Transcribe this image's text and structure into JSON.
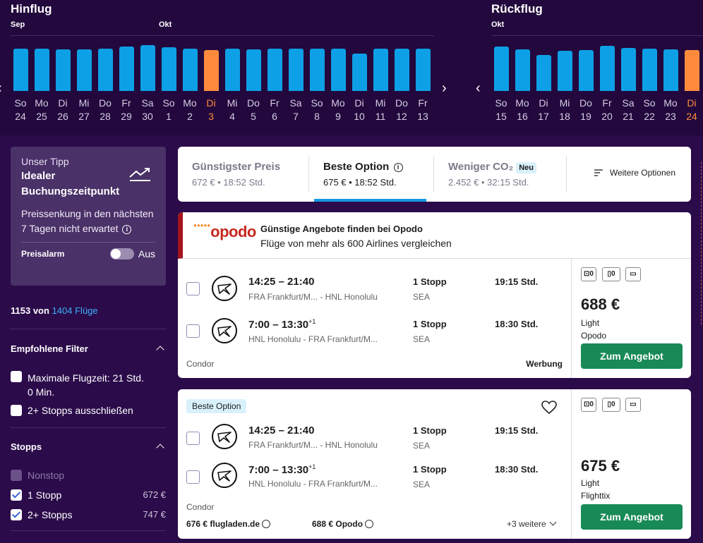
{
  "outbound": {
    "title": "Hinflug",
    "months": [
      "Sep",
      "Okt"
    ],
    "days": [
      {
        "name": "So",
        "num": "24",
        "level": 0.84
      },
      {
        "name": "Mo",
        "num": "25",
        "level": 0.83
      },
      {
        "name": "Di",
        "num": "26",
        "level": 0.82
      },
      {
        "name": "Mi",
        "num": "27",
        "level": 0.82
      },
      {
        "name": "Do",
        "num": "28",
        "level": 0.84
      },
      {
        "name": "Fr",
        "num": "29",
        "level": 0.88
      },
      {
        "name": "Sa",
        "num": "30",
        "level": 0.9
      },
      {
        "name": "So",
        "num": "1",
        "level": 0.86
      },
      {
        "name": "Mo",
        "num": "2",
        "level": 0.83
      },
      {
        "name": "Di",
        "num": "3",
        "level": 0.8,
        "selected": true
      },
      {
        "name": "Mi",
        "num": "4",
        "level": 0.83
      },
      {
        "name": "Do",
        "num": "5",
        "level": 0.82
      },
      {
        "name": "Fr",
        "num": "6",
        "level": 0.84
      },
      {
        "name": "Sa",
        "num": "7",
        "level": 0.83
      },
      {
        "name": "So",
        "num": "8",
        "level": 0.83
      },
      {
        "name": "Mo",
        "num": "9",
        "level": 0.84
      },
      {
        "name": "Di",
        "num": "10",
        "level": 0.74
      },
      {
        "name": "Mi",
        "num": "11",
        "level": 0.83
      },
      {
        "name": "Do",
        "num": "12",
        "level": 0.83
      },
      {
        "name": "Fr",
        "num": "13",
        "level": 0.84
      }
    ]
  },
  "return": {
    "title": "Rückflug",
    "months": [
      "Okt"
    ],
    "days": [
      {
        "name": "So",
        "num": "15",
        "level": 0.87
      },
      {
        "name": "Mo",
        "num": "16",
        "level": 0.82
      },
      {
        "name": "Di",
        "num": "17",
        "level": 0.71
      },
      {
        "name": "Mi",
        "num": "18",
        "level": 0.79
      },
      {
        "name": "Do",
        "num": "19",
        "level": 0.81
      },
      {
        "name": "Fr",
        "num": "20",
        "level": 0.89
      },
      {
        "name": "Sa",
        "num": "21",
        "level": 0.85
      },
      {
        "name": "So",
        "num": "22",
        "level": 0.83
      },
      {
        "name": "Mo",
        "num": "23",
        "level": 0.82
      },
      {
        "name": "Di",
        "num": "24",
        "level": 0.81,
        "selected": true
      }
    ]
  },
  "tip": {
    "label": "Unser Tipp",
    "title": "Idealer Buchungszeitpunkt",
    "text": "Preissenkung in den nächsten 7 Tagen nicht erwartet",
    "alarm_label": "Preisalarm",
    "alarm_state": "Aus"
  },
  "results": {
    "shown": "1153",
    "of": "von",
    "total": "1404 Flüge"
  },
  "filters": {
    "recommended_title": "Empfohlene Filter",
    "recommended": [
      {
        "label": "Maximale Flugzeit: 21 Std. 0 Min."
      },
      {
        "label": "2+ Stopps ausschließen"
      }
    ],
    "stops_title": "Stopps",
    "stops": [
      {
        "label": "Nonstop",
        "price": "",
        "checked": false,
        "disabled": true
      },
      {
        "label": "1 Stopp",
        "price": "672 €",
        "checked": true
      },
      {
        "label": "2+ Stopps",
        "price": "747 €",
        "checked": true
      }
    ]
  },
  "sort_tabs": [
    {
      "title": "Günstigster Preis",
      "sub": "672 € • 18:52 Std."
    },
    {
      "title": "Beste Option",
      "sub": "675 € • 18:52 Std."
    },
    {
      "title": "Weniger CO₂",
      "badge": "Neu",
      "sub": "2.452 € • 32:15 Std."
    }
  ],
  "more_options": "Weitere Optionen",
  "ad": {
    "logo": "opodo",
    "title": "Günstige Angebote finden bei Opodo",
    "subtitle": "Flüge von mehr als 600 Airlines vergleichen"
  },
  "cards": [
    {
      "legs": [
        {
          "times": "14:25 – 21:40",
          "plus": "",
          "route": "FRA Frankfurt/M... - HNL Honolulu",
          "stops": "1 Stopp",
          "via": "SEA",
          "duration": "19:15 Std."
        },
        {
          "times": "7:00 – 13:30",
          "plus": "+1",
          "route": "HNL Honolulu - FRA Frankfurt/M...",
          "stops": "1 Stopp",
          "via": "SEA",
          "duration": "18:30 Std."
        }
      ],
      "carrier": "Condor",
      "sponsored": "Werbung",
      "bags": [
        "0",
        "0"
      ],
      "price": "688 €",
      "fare": "Light",
      "provider": "Opodo",
      "cta": "Zum Angebot"
    },
    {
      "badge": "Beste Option",
      "legs": [
        {
          "times": "14:25 – 21:40",
          "plus": "",
          "route": "FRA Frankfurt/M... - HNL Honolulu",
          "stops": "1 Stopp",
          "via": "SEA",
          "duration": "19:15 Std."
        },
        {
          "times": "7:00 – 13:30",
          "plus": "+1",
          "route": "HNL Honolulu - FRA Frankfurt/M...",
          "stops": "1 Stopp",
          "via": "SEA",
          "duration": "18:30 Std."
        }
      ],
      "carrier": "Condor",
      "bags": [
        "0",
        "0"
      ],
      "price": "675 €",
      "fare": "Light",
      "provider": "Flighttix",
      "cta": "Zum Angebot",
      "alt_offers": [
        {
          "price": "676 €",
          "provider": "flugladen.de"
        },
        {
          "price": "688 €",
          "provider": "Opodo"
        }
      ],
      "more": "+3 weitere"
    }
  ]
}
